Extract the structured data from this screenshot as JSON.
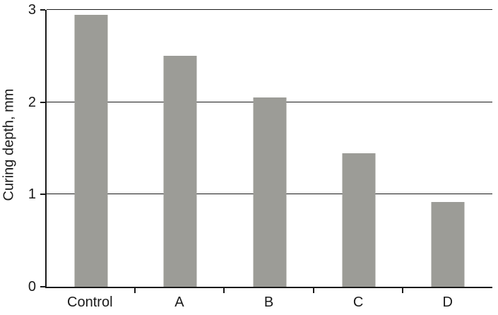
{
  "chart_data": {
    "type": "bar",
    "title": "",
    "categories": [
      "Control",
      "A",
      "B",
      "C",
      "D"
    ],
    "values": [
      2.95,
      2.5,
      2.05,
      1.45,
      0.92
    ],
    "xlabel": "",
    "ylabel": "Curing depth, mm",
    "ylim": [
      0,
      3
    ],
    "yticks": [
      0,
      1,
      2,
      3
    ],
    "gridlines": [
      1,
      2,
      3
    ],
    "bar_color": "#9c9c97",
    "axis_color": "#1a1a1a",
    "background": "#ffffff",
    "legend": "none",
    "grid": "horizontal"
  }
}
